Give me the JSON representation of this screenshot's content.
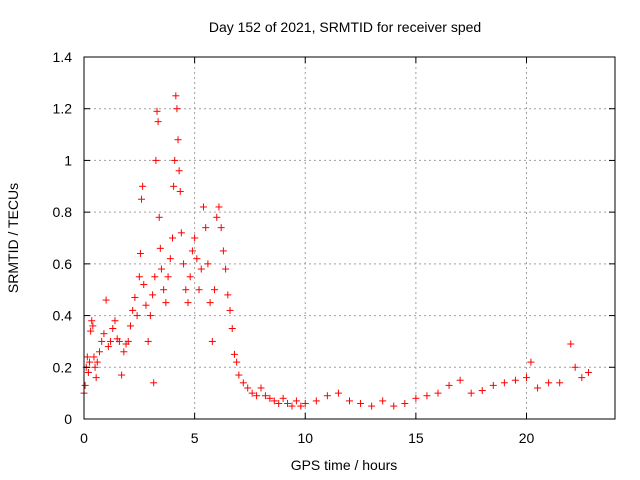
{
  "chart_data": {
    "type": "scatter",
    "title": "Day 152 of 2021, SRMTID for receiver sped",
    "xlabel": "GPS time / hours",
    "ylabel": "SRMTID / TECUs",
    "xlim": [
      0,
      24
    ],
    "ylim": [
      0,
      1.4
    ],
    "xticks": [
      0,
      5,
      10,
      15,
      20
    ],
    "yticks": [
      0,
      0.2,
      0.4,
      0.6,
      0.8,
      1,
      1.2,
      1.4
    ],
    "xtick_labels": [
      "0",
      "5",
      "10",
      "15",
      "20"
    ],
    "ytick_labels": [
      "0",
      "0.2",
      "0.4",
      "0.6",
      "0.8",
      "1",
      "1.2",
      "1.4"
    ],
    "grid": true,
    "marker": "+",
    "color": "#ff0000",
    "series": [
      {
        "name": "SRMTID",
        "points": [
          [
            0.0,
            0.1
          ],
          [
            0.05,
            0.13
          ],
          [
            0.1,
            0.2
          ],
          [
            0.15,
            0.24
          ],
          [
            0.2,
            0.18
          ],
          [
            0.25,
            0.22
          ],
          [
            0.3,
            0.34
          ],
          [
            0.35,
            0.38
          ],
          [
            0.4,
            0.36
          ],
          [
            0.45,
            0.24
          ],
          [
            0.5,
            0.2
          ],
          [
            0.55,
            0.16
          ],
          [
            0.6,
            0.22
          ],
          [
            0.7,
            0.26
          ],
          [
            0.8,
            0.3
          ],
          [
            0.9,
            0.33
          ],
          [
            1.0,
            0.46
          ],
          [
            1.1,
            0.28
          ],
          [
            1.2,
            0.3
          ],
          [
            1.3,
            0.35
          ],
          [
            1.4,
            0.38
          ],
          [
            1.5,
            0.31
          ],
          [
            1.6,
            0.3
          ],
          [
            1.7,
            0.17
          ],
          [
            1.8,
            0.26
          ],
          [
            1.9,
            0.29
          ],
          [
            2.0,
            0.3
          ],
          [
            2.1,
            0.36
          ],
          [
            2.2,
            0.42
          ],
          [
            2.3,
            0.47
          ],
          [
            2.4,
            0.4
          ],
          [
            2.5,
            0.55
          ],
          [
            2.55,
            0.64
          ],
          [
            2.6,
            0.85
          ],
          [
            2.65,
            0.9
          ],
          [
            2.7,
            0.52
          ],
          [
            2.8,
            0.44
          ],
          [
            2.9,
            0.3
          ],
          [
            3.0,
            0.4
          ],
          [
            3.1,
            0.48
          ],
          [
            3.15,
            0.14
          ],
          [
            3.2,
            0.55
          ],
          [
            3.25,
            1.0
          ],
          [
            3.3,
            1.19
          ],
          [
            3.35,
            1.15
          ],
          [
            3.4,
            0.78
          ],
          [
            3.45,
            0.66
          ],
          [
            3.5,
            0.58
          ],
          [
            3.6,
            0.5
          ],
          [
            3.7,
            0.45
          ],
          [
            3.8,
            0.55
          ],
          [
            3.9,
            0.62
          ],
          [
            4.0,
            0.7
          ],
          [
            4.05,
            0.9
          ],
          [
            4.1,
            1.0
          ],
          [
            4.15,
            1.25
          ],
          [
            4.2,
            1.2
          ],
          [
            4.25,
            1.08
          ],
          [
            4.3,
            0.96
          ],
          [
            4.35,
            0.88
          ],
          [
            4.4,
            0.72
          ],
          [
            4.5,
            0.6
          ],
          [
            4.6,
            0.5
          ],
          [
            4.7,
            0.45
          ],
          [
            4.8,
            0.55
          ],
          [
            4.9,
            0.65
          ],
          [
            5.0,
            0.7
          ],
          [
            5.1,
            0.62
          ],
          [
            5.2,
            0.5
          ],
          [
            5.3,
            0.58
          ],
          [
            5.4,
            0.82
          ],
          [
            5.5,
            0.74
          ],
          [
            5.6,
            0.6
          ],
          [
            5.7,
            0.45
          ],
          [
            5.8,
            0.3
          ],
          [
            5.9,
            0.5
          ],
          [
            6.0,
            0.78
          ],
          [
            6.1,
            0.82
          ],
          [
            6.2,
            0.74
          ],
          [
            6.3,
            0.65
          ],
          [
            6.4,
            0.58
          ],
          [
            6.5,
            0.48
          ],
          [
            6.6,
            0.42
          ],
          [
            6.7,
            0.35
          ],
          [
            6.8,
            0.25
          ],
          [
            6.9,
            0.22
          ],
          [
            7.0,
            0.17
          ],
          [
            7.2,
            0.14
          ],
          [
            7.4,
            0.12
          ],
          [
            7.6,
            0.1
          ],
          [
            7.8,
            0.09
          ],
          [
            8.0,
            0.12
          ],
          [
            8.2,
            0.09
          ],
          [
            8.4,
            0.08
          ],
          [
            8.6,
            0.07
          ],
          [
            8.8,
            0.06
          ],
          [
            9.0,
            0.08
          ],
          [
            9.2,
            0.06
          ],
          [
            9.4,
            0.05
          ],
          [
            9.6,
            0.07
          ],
          [
            9.8,
            0.05
          ],
          [
            10.0,
            0.06
          ],
          [
            10.5,
            0.07
          ],
          [
            11.0,
            0.09
          ],
          [
            11.5,
            0.1
          ],
          [
            12.0,
            0.07
          ],
          [
            12.5,
            0.06
          ],
          [
            13.0,
            0.05
          ],
          [
            13.5,
            0.07
          ],
          [
            14.0,
            0.05
          ],
          [
            14.5,
            0.06
          ],
          [
            15.0,
            0.08
          ],
          [
            15.5,
            0.09
          ],
          [
            16.0,
            0.1
          ],
          [
            16.5,
            0.13
          ],
          [
            17.0,
            0.15
          ],
          [
            17.5,
            0.1
          ],
          [
            18.0,
            0.11
          ],
          [
            18.5,
            0.13
          ],
          [
            19.0,
            0.14
          ],
          [
            19.5,
            0.15
          ],
          [
            20.0,
            0.16
          ],
          [
            20.2,
            0.22
          ],
          [
            20.5,
            0.12
          ],
          [
            21.0,
            0.14
          ],
          [
            21.5,
            0.14
          ],
          [
            22.0,
            0.29
          ],
          [
            22.2,
            0.2
          ],
          [
            22.5,
            0.16
          ],
          [
            22.8,
            0.18
          ]
        ]
      }
    ]
  }
}
